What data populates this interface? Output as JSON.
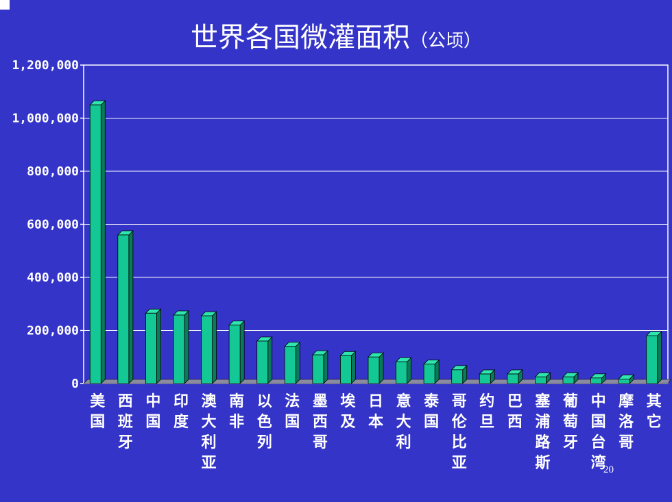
{
  "chart_data": {
    "type": "bar",
    "title": "世界各国微灌面积",
    "title_unit": "（公顷）",
    "xlabel": "",
    "ylabel": "",
    "ylim": [
      0,
      1200000
    ],
    "yticks": [
      "0",
      "200,000",
      "400,000",
      "600,000",
      "800,000",
      "1,000,000",
      "1,200,000"
    ],
    "grid": true,
    "categories": [
      "美国",
      "西班牙",
      "中国",
      "印度",
      "澳大利亚",
      "南非",
      "以色列",
      "法国",
      "墨西哥",
      "埃及",
      "日本",
      "意大利",
      "泰国",
      "哥伦比亚",
      "约旦",
      "巴西",
      "塞浦路斯",
      "葡萄牙",
      "中国台湾",
      "摩洛哥",
      "其它"
    ],
    "values": [
      1050000,
      560000,
      265000,
      258000,
      255000,
      220000,
      160000,
      140000,
      108000,
      105000,
      100000,
      82000,
      73000,
      52000,
      36000,
      36000,
      25000,
      25000,
      21000,
      17000,
      180000
    ],
    "colors": {
      "background": "#3434c8",
      "bar_front": "#14c896",
      "bar_side": "#0b7a5a",
      "bar_top": "#2ee6b0",
      "grid": "#ffffff",
      "text": "#ffffff"
    }
  },
  "page_number": "20"
}
